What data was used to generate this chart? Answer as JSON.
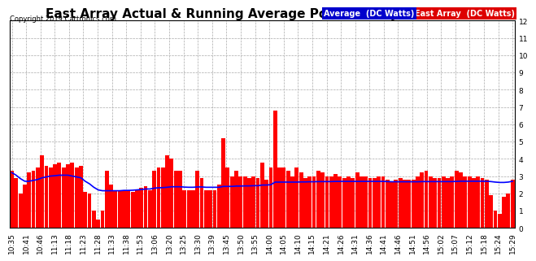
{
  "title": "East Array Actual & Running Average Power Wed Jan 23 15:33",
  "copyright": "Copyright 2019 Cartronics.com",
  "legend_avg": "Average  (DC Watts)",
  "legend_east": "East Array  (DC Watts)",
  "ylim": [
    0.0,
    12.0
  ],
  "yticks": [
    0.0,
    1.0,
    2.0,
    3.0,
    4.0,
    5.0,
    6.0,
    7.0,
    8.0,
    9.0,
    10.0,
    11.0,
    12.0
  ],
  "bar_color": "#ff0000",
  "avg_color": "#0000ff",
  "background_color": "#ffffff",
  "grid_color": "#aaaaaa",
  "title_fontsize": 11,
  "tick_fontsize": 6.5,
  "xtick_labels": [
    "10:35",
    "10:41",
    "10:46",
    "11:13",
    "11:18",
    "11:23",
    "11:28",
    "11:33",
    "11:38",
    "11:53",
    "13:06",
    "13:20",
    "13:25",
    "13:30",
    "13:39",
    "13:45",
    "13:50",
    "13:55",
    "14:00",
    "14:05",
    "14:10",
    "14:15",
    "14:21",
    "14:26",
    "14:31",
    "14:36",
    "14:41",
    "14:46",
    "14:51",
    "14:56",
    "15:02",
    "15:07",
    "15:12",
    "15:18",
    "15:24",
    "15:29"
  ],
  "bar_values": [
    3.3,
    2.9,
    2.0,
    2.5,
    3.2,
    3.3,
    3.5,
    4.2,
    3.6,
    3.5,
    3.7,
    3.8,
    3.5,
    3.7,
    3.8,
    3.5,
    3.6,
    2.1,
    2.0,
    1.0,
    0.5,
    1.0,
    3.3,
    2.5,
    2.2,
    2.2,
    2.2,
    2.2,
    2.1,
    2.2,
    2.3,
    2.4,
    2.2,
    3.3,
    3.5,
    3.5,
    4.2,
    4.0,
    3.3,
    3.3,
    2.2,
    2.2,
    2.2,
    3.3,
    2.9,
    2.2,
    2.2,
    2.2,
    2.5,
    5.2,
    3.5,
    3.0,
    3.3,
    3.0,
    3.0,
    2.9,
    3.0,
    2.9,
    3.8,
    2.8,
    3.5,
    6.8,
    3.5,
    3.5,
    3.3,
    3.0,
    3.5,
    3.2,
    2.9,
    3.0,
    3.0,
    3.3,
    3.2,
    3.0,
    3.0,
    3.1,
    3.0,
    2.9,
    3.0,
    2.9,
    3.2,
    3.0,
    3.0,
    2.9,
    2.9,
    3.0,
    3.0,
    2.8,
    2.7,
    2.8,
    2.9,
    2.8,
    2.8,
    2.8,
    3.0,
    3.2,
    3.3,
    3.0,
    2.9,
    2.9,
    3.0,
    2.9,
    3.0,
    3.3,
    3.2,
    3.0,
    3.0,
    2.9,
    3.0,
    2.9,
    2.8,
    1.9,
    1.0,
    0.8,
    1.8,
    2.0,
    2.8
  ],
  "avg_values": [
    3.2,
    3.05,
    2.85,
    2.7,
    2.7,
    2.75,
    2.8,
    2.9,
    2.95,
    3.0,
    3.02,
    3.05,
    3.05,
    3.05,
    3.0,
    2.95,
    2.9,
    2.7,
    2.55,
    2.35,
    2.2,
    2.15,
    2.15,
    2.15,
    2.15,
    2.15,
    2.17,
    2.17,
    2.18,
    2.2,
    2.22,
    2.25,
    2.25,
    2.3,
    2.32,
    2.33,
    2.35,
    2.38,
    2.38,
    2.38,
    2.36,
    2.35,
    2.35,
    2.37,
    2.37,
    2.35,
    2.35,
    2.35,
    2.35,
    2.4,
    2.4,
    2.4,
    2.42,
    2.42,
    2.43,
    2.43,
    2.44,
    2.44,
    2.48,
    2.48,
    2.5,
    2.65,
    2.65,
    2.65,
    2.65,
    2.65,
    2.65,
    2.66,
    2.66,
    2.67,
    2.67,
    2.68,
    2.68,
    2.68,
    2.68,
    2.69,
    2.69,
    2.69,
    2.69,
    2.69,
    2.69,
    2.69,
    2.69,
    2.69,
    2.69,
    2.69,
    2.69,
    2.68,
    2.67,
    2.67,
    2.67,
    2.67,
    2.67,
    2.67,
    2.67,
    2.68,
    2.68,
    2.68,
    2.68,
    2.68,
    2.68,
    2.68,
    2.68,
    2.69,
    2.7,
    2.7,
    2.7,
    2.7,
    2.7,
    2.7,
    2.7,
    2.68,
    2.65,
    2.63,
    2.63,
    2.65,
    2.7
  ]
}
